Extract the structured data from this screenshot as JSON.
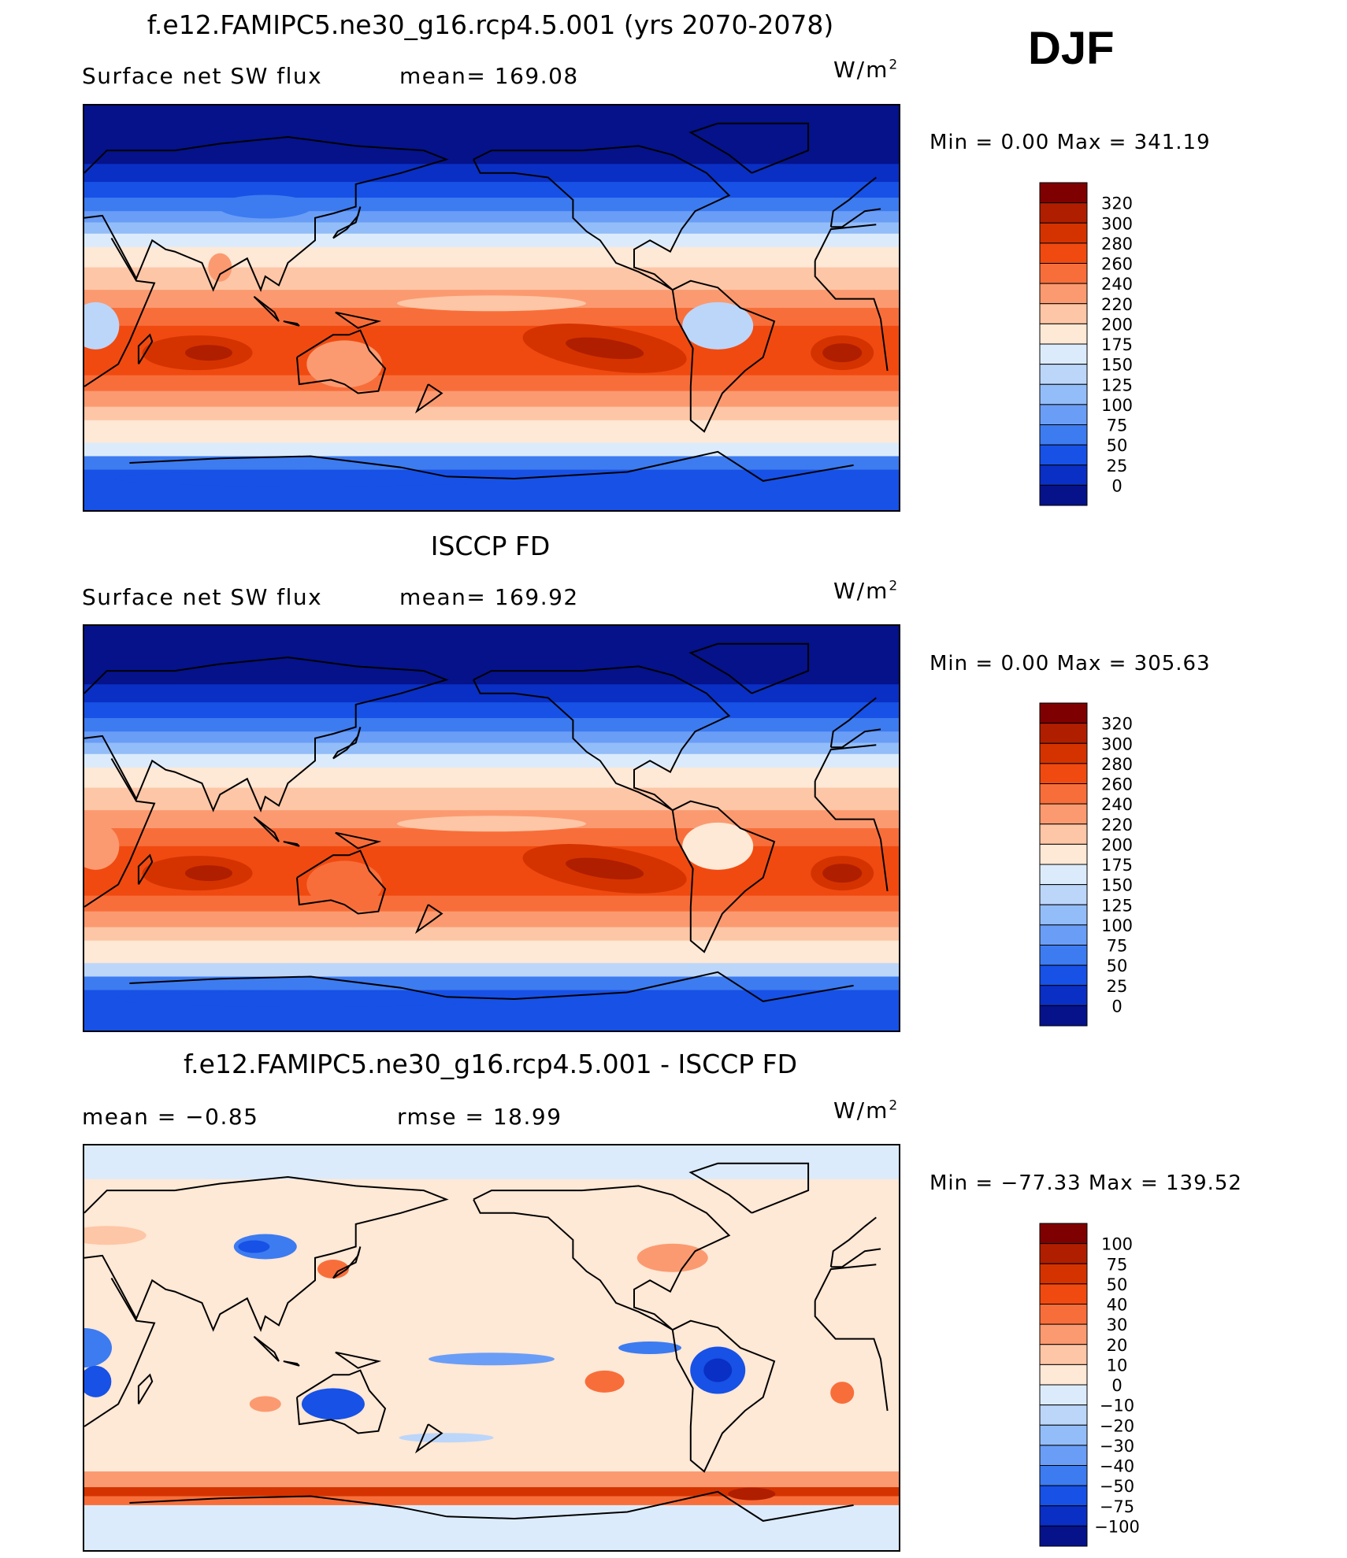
{
  "season": "DJF",
  "panels": [
    {
      "id": "model",
      "title": "f.e12.FAMIPC5.ne30_g16.rcp4.5.001 (yrs 2070-2078)",
      "left_label": "Surface net SW flux",
      "mid_label": "mean= 169.08",
      "unit_base": "W/m",
      "unit_exp": "2",
      "minmax": "Min =     0.00  Max  =  341.19",
      "colorbar": {
        "labels": [
          "320",
          "300",
          "280",
          "260",
          "240",
          "220",
          "200",
          "175",
          "150",
          "125",
          "100",
          "75",
          "50",
          "25",
          "0"
        ],
        "colors": [
          "#7f0000",
          "#b01e00",
          "#d43300",
          "#f04a10",
          "#f86e3a",
          "#fb9a70",
          "#fdc6a6",
          "#fee8d6",
          "#dcebfb",
          "#bcd6fa",
          "#93bdf8",
          "#6a9df6",
          "#3d7bf0",
          "#1751e6",
          "#0a2fc4",
          "#05128a"
        ]
      },
      "chart_data": {
        "type": "heatmap",
        "title": "f.e12.FAMIPC5.ne30_g16.rcp4.5.001 (yrs 2070-2078)",
        "variable": "Surface net SW flux",
        "unit": "W/m2",
        "mean": 169.08,
        "min": 0.0,
        "max": 341.19,
        "levels": [
          0,
          25,
          50,
          75,
          100,
          125,
          150,
          175,
          200,
          220,
          240,
          260,
          280,
          300,
          320
        ],
        "zonal_profile": [
          {
            "lat": 90,
            "value": 0
          },
          {
            "lat": 75,
            "value": 10
          },
          {
            "lat": 60,
            "value": 45
          },
          {
            "lat": 50,
            "value": 90
          },
          {
            "lat": 40,
            "value": 135
          },
          {
            "lat": 30,
            "value": 180
          },
          {
            "lat": 15,
            "value": 215
          },
          {
            "lat": 0,
            "value": 240
          },
          {
            "lat": -15,
            "value": 285
          },
          {
            "lat": -25,
            "value": 300
          },
          {
            "lat": -35,
            "value": 270
          },
          {
            "lat": -45,
            "value": 210
          },
          {
            "lat": -55,
            "value": 185
          },
          {
            "lat": -65,
            "value": 100
          },
          {
            "lat": -80,
            "value": 60
          }
        ]
      }
    },
    {
      "id": "obs",
      "title": "ISCCP FD",
      "left_label": "Surface net SW flux",
      "mid_label": "mean= 169.92",
      "unit_base": "W/m",
      "unit_exp": "2",
      "minmax": "Min =     0.00  Max  =  305.63",
      "colorbar": {
        "labels": [
          "320",
          "300",
          "280",
          "260",
          "240",
          "220",
          "200",
          "175",
          "150",
          "125",
          "100",
          "75",
          "50",
          "25",
          "0"
        ],
        "colors": [
          "#7f0000",
          "#b01e00",
          "#d43300",
          "#f04a10",
          "#f86e3a",
          "#fb9a70",
          "#fdc6a6",
          "#fee8d6",
          "#dcebfb",
          "#bcd6fa",
          "#93bdf8",
          "#6a9df6",
          "#3d7bf0",
          "#1751e6",
          "#0a2fc4",
          "#05128a"
        ]
      },
      "chart_data": {
        "type": "heatmap",
        "title": "ISCCP FD",
        "variable": "Surface net SW flux",
        "unit": "W/m2",
        "mean": 169.92,
        "min": 0.0,
        "max": 305.63,
        "levels": [
          0,
          25,
          50,
          75,
          100,
          125,
          150,
          175,
          200,
          220,
          240,
          260,
          280,
          300,
          320
        ],
        "zonal_profile": [
          {
            "lat": 90,
            "value": 0
          },
          {
            "lat": 75,
            "value": 10
          },
          {
            "lat": 60,
            "value": 40
          },
          {
            "lat": 50,
            "value": 85
          },
          {
            "lat": 40,
            "value": 130
          },
          {
            "lat": 30,
            "value": 180
          },
          {
            "lat": 15,
            "value": 225
          },
          {
            "lat": 0,
            "value": 250
          },
          {
            "lat": -15,
            "value": 275
          },
          {
            "lat": -25,
            "value": 285
          },
          {
            "lat": -35,
            "value": 255
          },
          {
            "lat": -45,
            "value": 200
          },
          {
            "lat": -55,
            "value": 150
          },
          {
            "lat": -65,
            "value": 90
          },
          {
            "lat": -80,
            "value": 70
          }
        ]
      }
    },
    {
      "id": "diff",
      "title": "f.e12.FAMIPC5.ne30_g16.rcp4.5.001 - ISCCP FD",
      "left_label": "mean =    −0.85",
      "mid_label": "rmse  =     18.99",
      "unit_base": "W/m",
      "unit_exp": "2",
      "minmax": "Min  =  −77.33  Max  =  139.52",
      "colorbar": {
        "labels": [
          "100",
          "75",
          "50",
          "40",
          "30",
          "20",
          "10",
          "0",
          "−10",
          "−20",
          "−30",
          "−40",
          "−50",
          "−75",
          "−100"
        ],
        "colors": [
          "#7f0000",
          "#b01e00",
          "#d43300",
          "#f04a10",
          "#f86e3a",
          "#fb9a70",
          "#fdc6a6",
          "#fee8d6",
          "#dcebfb",
          "#bcd6fa",
          "#93bdf8",
          "#6a9df6",
          "#3d7bf0",
          "#1751e6",
          "#0a2fc4",
          "#05128a"
        ]
      },
      "chart_data": {
        "type": "heatmap",
        "title": "f.e12.FAMIPC5.ne30_g16.rcp4.5.001 - ISCCP FD",
        "unit": "W/m2",
        "mean": -0.85,
        "rmse": 18.99,
        "min": -77.33,
        "max": 139.52,
        "levels": [
          -100,
          -75,
          -50,
          -40,
          -30,
          -20,
          -10,
          0,
          10,
          20,
          30,
          40,
          50,
          75,
          100
        ],
        "zonal_profile": [
          {
            "lat": 80,
            "value": -5
          },
          {
            "lat": 60,
            "value": 5
          },
          {
            "lat": 40,
            "value": 10
          },
          {
            "lat": 20,
            "value": 0
          },
          {
            "lat": 5,
            "value": -20
          },
          {
            "lat": -10,
            "value": -10
          },
          {
            "lat": -25,
            "value": 10
          },
          {
            "lat": -40,
            "value": 5
          },
          {
            "lat": -55,
            "value": 20
          },
          {
            "lat": -65,
            "value": 60
          },
          {
            "lat": -75,
            "value": -5
          }
        ]
      }
    }
  ]
}
